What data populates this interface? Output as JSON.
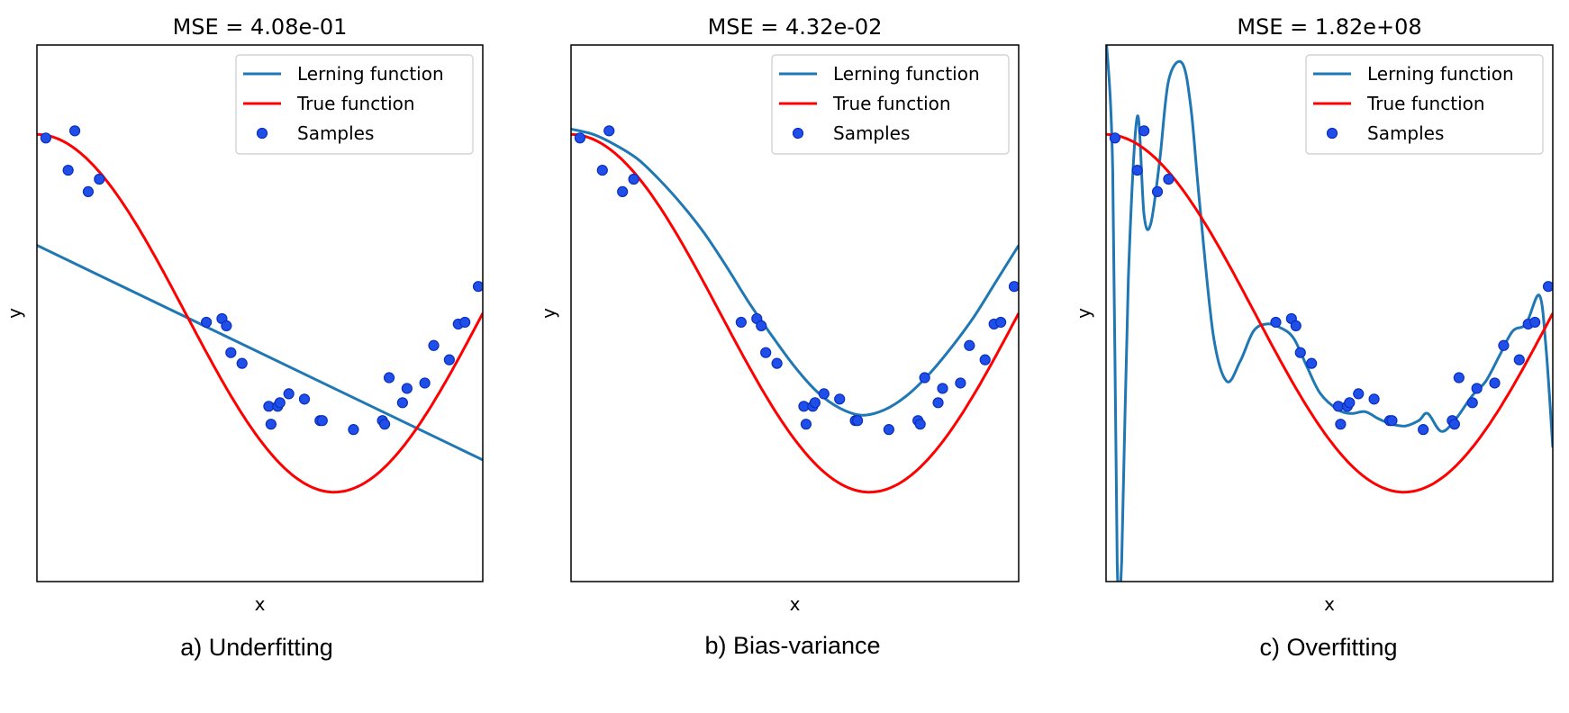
{
  "figure": {
    "captions": [
      "a) Underfitting",
      "b) Bias-variance",
      "c) Overfitting"
    ]
  },
  "chart_data": [
    {
      "type": "line",
      "title": "MSE = 4.08e-01",
      "xlabel": "x",
      "ylabel": "y",
      "xlim": [
        0,
        1
      ],
      "ylim": [
        -1.5,
        1.5
      ],
      "legend": {
        "position": "top-right",
        "entries": [
          "Lerning function",
          "True function",
          "Samples"
        ]
      },
      "series": [
        {
          "name": "Lerning function",
          "color": "#1f77b4",
          "kind": "line",
          "x": [
            0,
            1
          ],
          "y": [
            0.38,
            -0.82
          ]
        },
        {
          "name": "True function",
          "color": "#ff0000",
          "kind": "cos1.5pi"
        },
        {
          "name": "Samples",
          "color": "#0033ff",
          "kind": "scatter"
        }
      ]
    },
    {
      "type": "line",
      "title": "MSE = 4.32e-02",
      "xlabel": "x",
      "ylabel": "y",
      "xlim": [
        0,
        1
      ],
      "ylim": [
        -1.5,
        1.5
      ],
      "legend": {
        "position": "top-right",
        "entries": [
          "Lerning function",
          "True function",
          "Samples"
        ]
      },
      "series": [
        {
          "name": "Lerning function",
          "color": "#1f77b4",
          "kind": "poly4",
          "x": [
            0,
            0.05,
            0.1,
            0.15,
            0.2,
            0.25,
            0.3,
            0.35,
            0.4,
            0.45,
            0.5,
            0.55,
            0.6,
            0.65,
            0.7,
            0.75,
            0.8,
            0.85,
            0.9,
            0.95,
            1
          ],
          "y": [
            1.03,
            1.0,
            0.94,
            0.86,
            0.74,
            0.6,
            0.44,
            0.25,
            0.05,
            -0.13,
            -0.3,
            -0.44,
            -0.53,
            -0.57,
            -0.54,
            -0.46,
            -0.34,
            -0.19,
            -0.02,
            0.18,
            0.38
          ]
        },
        {
          "name": "True function",
          "color": "#ff0000",
          "kind": "cos1.5pi"
        },
        {
          "name": "Samples",
          "color": "#0033ff",
          "kind": "scatter"
        }
      ]
    },
    {
      "type": "line",
      "title": "MSE = 1.82e+08",
      "xlabel": "x",
      "ylabel": "y",
      "xlim": [
        0,
        1
      ],
      "ylim": [
        -1.5,
        1.5
      ],
      "legend": {
        "position": "top-right",
        "entries": [
          "Lerning function",
          "True function",
          "Samples"
        ]
      },
      "series": [
        {
          "name": "Lerning function",
          "color": "#1f77b4",
          "kind": "poly15",
          "x": [
            0.0,
            0.015,
            0.025,
            0.035,
            0.05,
            0.07,
            0.085,
            0.1,
            0.12,
            0.14,
            0.17,
            0.19,
            0.21,
            0.24,
            0.27,
            0.3,
            0.33,
            0.36,
            0.39,
            0.42,
            0.45,
            0.48,
            0.52,
            0.55,
            0.58,
            0.61,
            0.64,
            0.67,
            0.7,
            0.72,
            0.75,
            0.78,
            0.82,
            0.85,
            0.88,
            0.91,
            0.94,
            0.97,
            0.985,
            1.0
          ],
          "y": [
            1.55,
            0.8,
            -1.4,
            -1.38,
            0.2,
            1.1,
            0.55,
            0.5,
            0.85,
            1.3,
            1.4,
            1.15,
            0.6,
            -0.12,
            -0.38,
            -0.27,
            -0.1,
            -0.06,
            -0.08,
            -0.14,
            -0.3,
            -0.45,
            -0.54,
            -0.56,
            -0.55,
            -0.59,
            -0.62,
            -0.63,
            -0.6,
            -0.56,
            -0.66,
            -0.6,
            -0.46,
            -0.38,
            -0.24,
            -0.1,
            -0.06,
            0.1,
            -0.2,
            -0.75
          ]
        },
        {
          "name": "True function",
          "color": "#ff0000",
          "kind": "cos1.5pi"
        },
        {
          "name": "Samples",
          "color": "#0033ff",
          "kind": "scatter"
        }
      ]
    }
  ],
  "samples": {
    "x": [
      0.02,
      0.07,
      0.085,
      0.115,
      0.14,
      0.38,
      0.415,
      0.425,
      0.435,
      0.46,
      0.52,
      0.525,
      0.54,
      0.545,
      0.565,
      0.6,
      0.635,
      0.64,
      0.71,
      0.775,
      0.78,
      0.79,
      0.82,
      0.83,
      0.87,
      0.89,
      0.925,
      0.945,
      0.96,
      0.99
    ],
    "y": [
      0.98,
      0.8,
      1.02,
      0.68,
      0.75,
      -0.05,
      -0.03,
      -0.07,
      -0.22,
      -0.28,
      -0.52,
      -0.62,
      -0.52,
      -0.5,
      -0.45,
      -0.48,
      -0.6,
      -0.6,
      -0.65,
      -0.6,
      -0.62,
      -0.36,
      -0.5,
      -0.42,
      -0.39,
      -0.18,
      -0.26,
      -0.06,
      -0.05,
      0.15
    ]
  }
}
